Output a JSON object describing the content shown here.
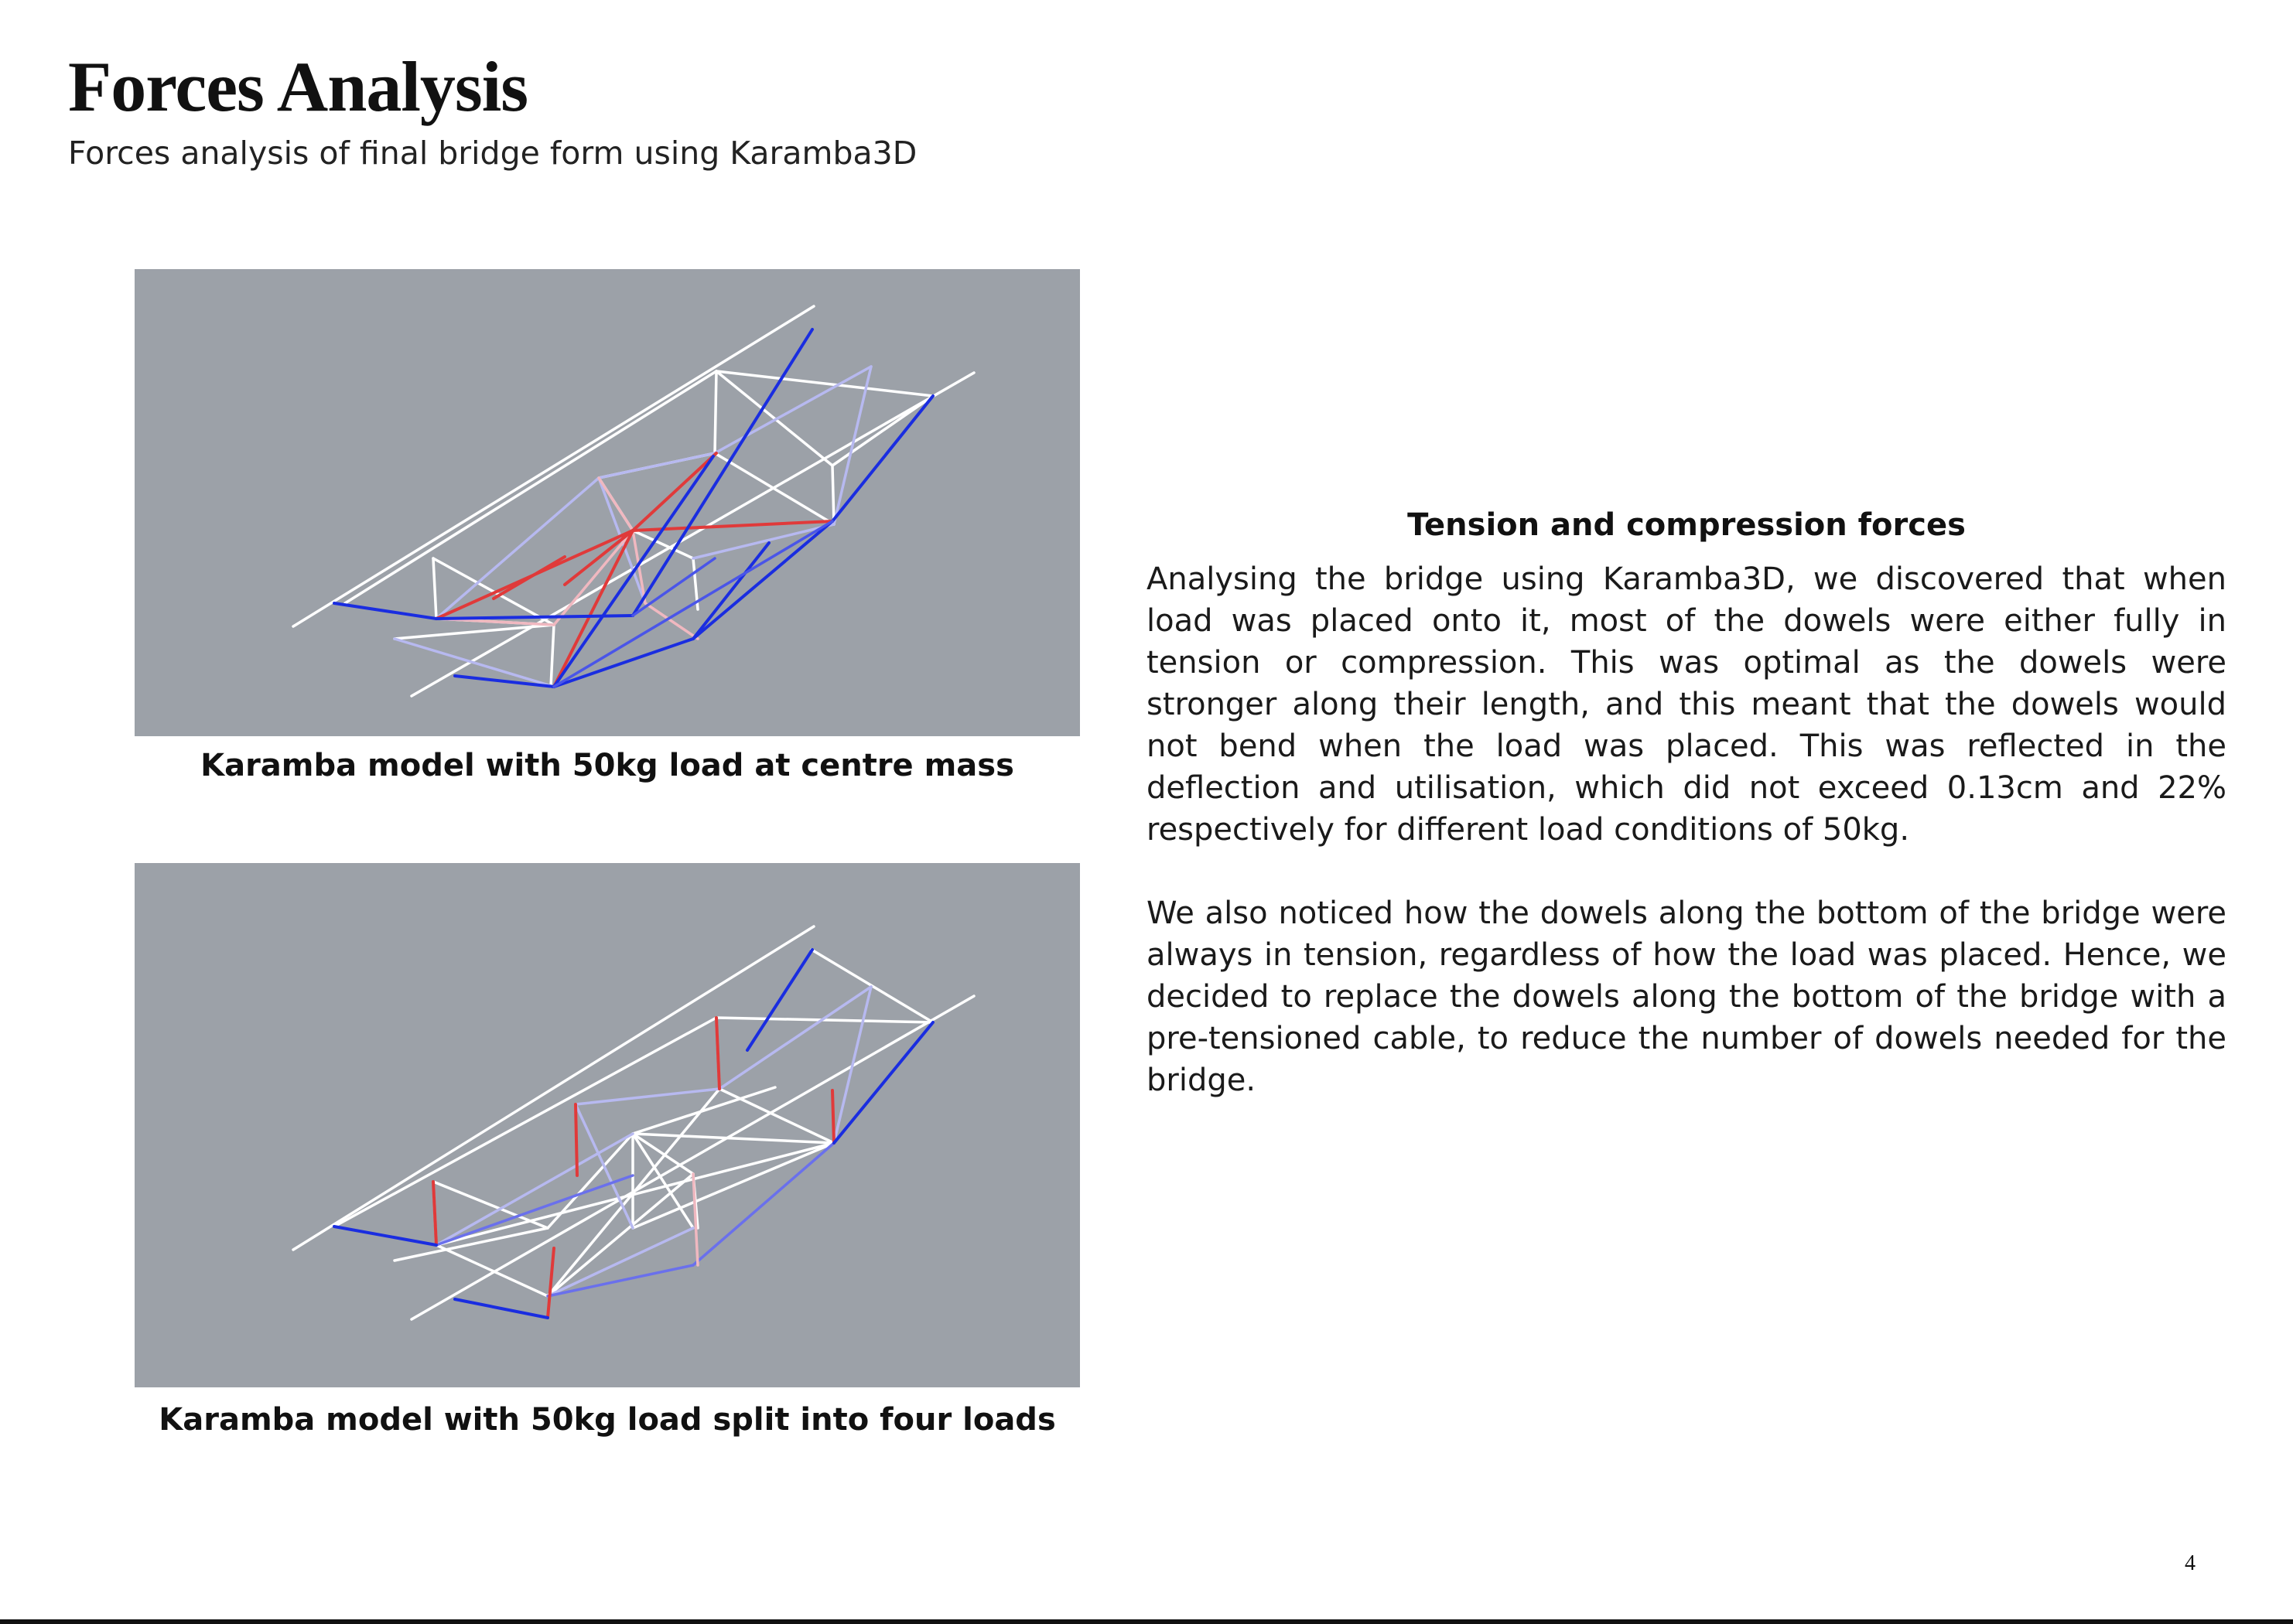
{
  "header": {
    "title": "Forces Analysis",
    "subtitle": "Forces analysis of final bridge form using Karamba3D"
  },
  "figures": [
    {
      "caption": "Karamba model with 50kg load at centre mass",
      "description_icon": "bridge-truss-model"
    },
    {
      "caption": "Karamba model with 50kg load split into four loads",
      "description_icon": "bridge-truss-model"
    }
  ],
  "colors": {
    "figure_background": "#9ca1a8",
    "tension": "#e03a3a",
    "compression": "#1a2de0",
    "neutral": "#ffffff"
  },
  "text": {
    "heading": "Tension and compression forces",
    "paragraphs": [
      "Analysing the bridge using Karamba3D, we discovered that when load was placed onto it, most of the dowels were either fully in tension or compression. This was optimal as the dowels were stronger along their length, and this meant that the dowels would not bend when the load was placed. This was reflected in the deflection and utilisation, which did not exceed 0.13cm and 22% respectively for different load conditions of 50kg.",
      "We also noticed how the dowels along the bottom of the bridge were always in tension, regardless of how the load was placed. Hence, we decided to replace the dowels along the bottom of the bridge with a pre-tensioned cable, to reduce the number of dowels needed for the bridge."
    ]
  },
  "footer": {
    "page_number": "4"
  }
}
